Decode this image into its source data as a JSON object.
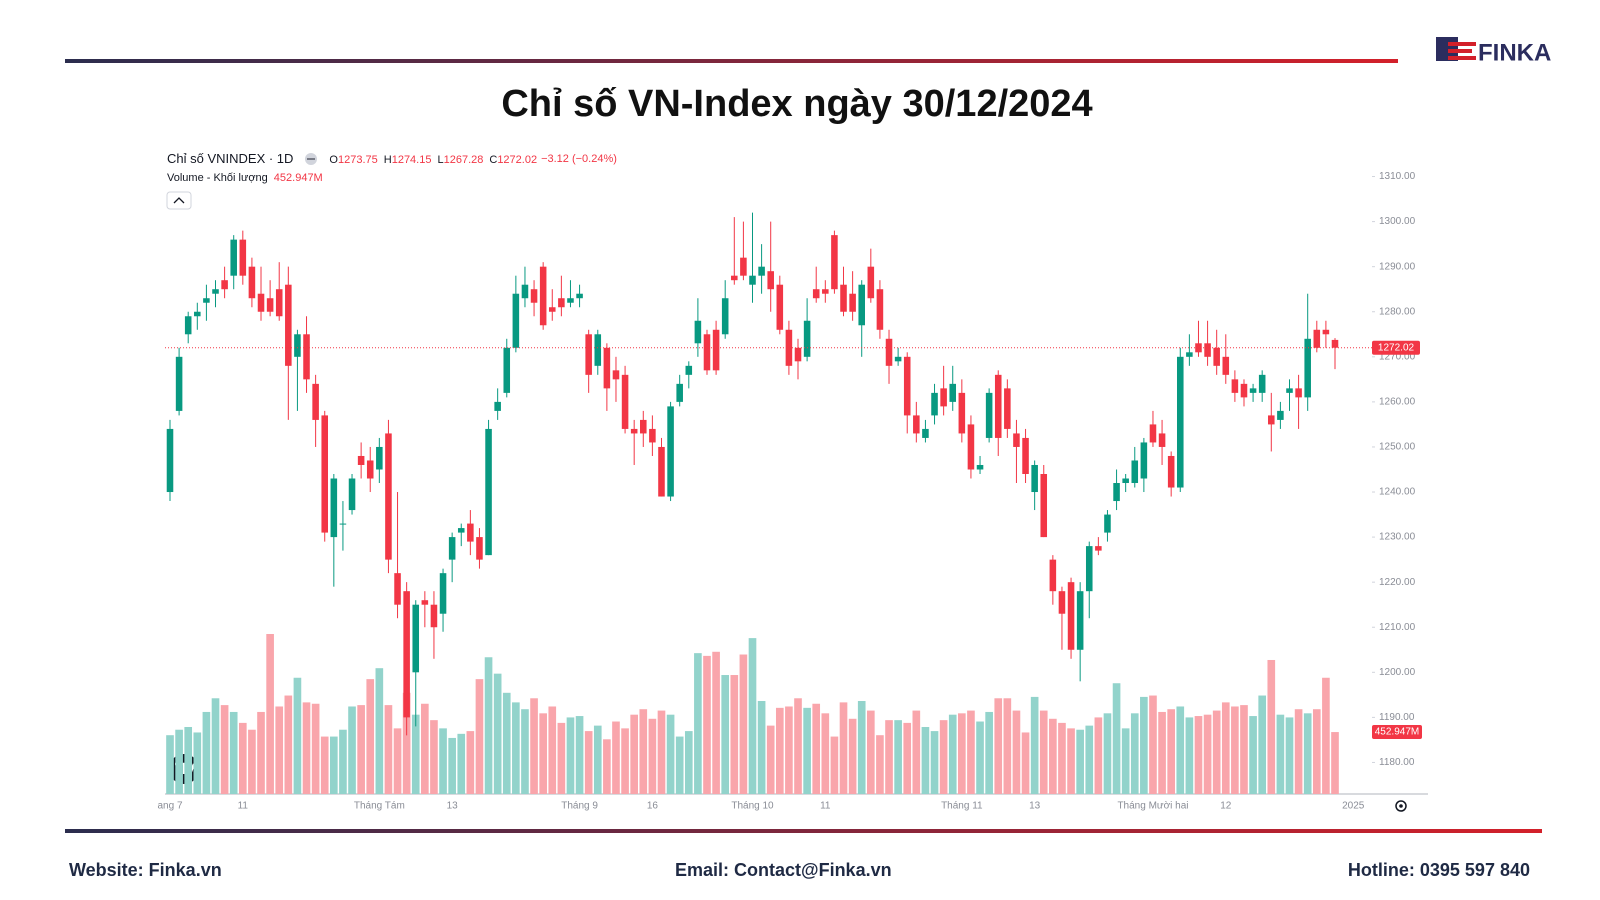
{
  "header": {
    "logo": "FINKA",
    "title": "Chỉ số VN-Index ngày 30/12/2024"
  },
  "footer": {
    "website": "Website: Finka.vn",
    "email": "Email: Contact@Finka.vn",
    "hotline": "Hotline: 0395 597 840"
  },
  "chart_data": {
    "type": "candlestick",
    "symbol": "Chỉ số VNINDEX · 1D",
    "ohlc_legend": [
      {
        "key": "O",
        "value": "1273.75"
      },
      {
        "key": "H",
        "value": "1274.15"
      },
      {
        "key": "L",
        "value": "1267.28"
      },
      {
        "key": "C",
        "value": "1272.02"
      }
    ],
    "change": "−3.12 (−0.24%)",
    "volume_title": "Volume - Khối lượng",
    "volume_last": "452.947M",
    "last_price": {
      "value": 1272.02,
      "label": "1272.02"
    },
    "up_color": "#089981",
    "down_color": "#f23645",
    "volume_up_color": "#92d3cb",
    "volume_down_color": "#f9a5ab",
    "ylim": [
      1173,
      1315
    ],
    "yticks": [
      {
        "value": 1180,
        "label": "1180.00"
      },
      {
        "value": 1190,
        "label": "1190.00"
      },
      {
        "value": 1200,
        "label": "1200.00"
      },
      {
        "value": 1210,
        "label": "1210.00"
      },
      {
        "value": 1220,
        "label": "1220.00"
      },
      {
        "value": 1230,
        "label": "1230.00"
      },
      {
        "value": 1240,
        "label": "1240.00"
      },
      {
        "value": 1250,
        "label": "1250.00"
      },
      {
        "value": 1260,
        "label": "1260.00"
      },
      {
        "value": 1270,
        "label": "1270.00"
      },
      {
        "value": 1280,
        "label": "1280.00"
      },
      {
        "value": 1290,
        "label": "1290.00"
      },
      {
        "value": 1300,
        "label": "1300.00"
      },
      {
        "value": 1310,
        "label": "1310.00"
      }
    ],
    "x_labels": [
      {
        "index": 0,
        "label": "ang 7"
      },
      {
        "index": 8,
        "label": "11"
      },
      {
        "index": 23,
        "label": "Tháng Tám"
      },
      {
        "index": 31,
        "label": "13"
      },
      {
        "index": 45,
        "label": "Tháng 9"
      },
      {
        "index": 53,
        "label": "16"
      },
      {
        "index": 64,
        "label": "Tháng 10"
      },
      {
        "index": 72,
        "label": "11"
      },
      {
        "index": 87,
        "label": "Tháng 11"
      },
      {
        "index": 95,
        "label": "13"
      },
      {
        "index": 108,
        "label": "Tháng Mười hai"
      },
      {
        "index": 116,
        "label": "12"
      },
      {
        "index": 130,
        "label": "2025"
      }
    ],
    "ohlc": [
      [
        1240,
        1256,
        1238,
        1254
      ],
      [
        1258,
        1272,
        1257,
        1270
      ],
      [
        1275,
        1280,
        1273,
        1279
      ],
      [
        1279,
        1282,
        1276,
        1280
      ],
      [
        1282,
        1286,
        1278,
        1283
      ],
      [
        1284,
        1287,
        1281,
        1285
      ],
      [
        1287,
        1290,
        1283,
        1285
      ],
      [
        1288,
        1297,
        1285,
        1296
      ],
      [
        1296,
        1298,
        1286,
        1288
      ],
      [
        1290,
        1292,
        1281,
        1283
      ],
      [
        1284,
        1290,
        1278,
        1280
      ],
      [
        1283,
        1287,
        1279,
        1280
      ],
      [
        1285,
        1291,
        1278,
        1279
      ],
      [
        1286,
        1290,
        1256,
        1268
      ],
      [
        1270,
        1276,
        1258,
        1275
      ],
      [
        1275,
        1279,
        1262,
        1265
      ],
      [
        1264,
        1266,
        1250,
        1256
      ],
      [
        1257,
        1258,
        1229,
        1231
      ],
      [
        1230,
        1244,
        1219,
        1243
      ],
      [
        1233,
        1238,
        1227,
        1233
      ],
      [
        1236,
        1244,
        1235,
        1243
      ],
      [
        1248,
        1251,
        1243,
        1246
      ],
      [
        1247,
        1250,
        1240,
        1243
      ],
      [
        1245,
        1252,
        1242,
        1250
      ],
      [
        1253,
        1256,
        1222,
        1225
      ],
      [
        1222,
        1240,
        1212,
        1215
      ],
      [
        1218,
        1220,
        1186,
        1190
      ],
      [
        1200,
        1216,
        1188,
        1215
      ],
      [
        1216,
        1218,
        1210,
        1215
      ],
      [
        1215,
        1218,
        1203,
        1210
      ],
      [
        1213,
        1223,
        1209,
        1222
      ],
      [
        1225,
        1231,
        1220,
        1230
      ],
      [
        1231,
        1233,
        1228,
        1232
      ],
      [
        1233,
        1236,
        1226,
        1229
      ],
      [
        1230,
        1232,
        1223,
        1225
      ],
      [
        1226,
        1256,
        1226,
        1254
      ],
      [
        1258,
        1263,
        1256,
        1260
      ],
      [
        1262,
        1274,
        1261,
        1272
      ],
      [
        1272,
        1288,
        1271,
        1284
      ],
      [
        1283,
        1290,
        1281,
        1286
      ],
      [
        1285,
        1287,
        1279,
        1282
      ],
      [
        1290,
        1291,
        1276,
        1277
      ],
      [
        1281,
        1285,
        1278,
        1280
      ],
      [
        1283,
        1288,
        1279,
        1281
      ],
      [
        1282,
        1287,
        1281,
        1283
      ],
      [
        1283,
        1286,
        1281,
        1284
      ],
      [
        1275,
        1276,
        1262,
        1266
      ],
      [
        1268,
        1276,
        1266,
        1275
      ],
      [
        1272,
        1273,
        1258,
        1263
      ],
      [
        1267,
        1270,
        1260,
        1265
      ],
      [
        1266,
        1268,
        1253,
        1254
      ],
      [
        1254,
        1256,
        1246,
        1253
      ],
      [
        1256,
        1258,
        1250,
        1253
      ],
      [
        1254,
        1257,
        1248,
        1251
      ],
      [
        1250,
        1252,
        1239,
        1239
      ],
      [
        1239,
        1260,
        1238,
        1259
      ],
      [
        1260,
        1266,
        1259,
        1264
      ],
      [
        1266,
        1269,
        1263,
        1268
      ],
      [
        1273,
        1283,
        1270,
        1278
      ],
      [
        1275,
        1276,
        1266,
        1267
      ],
      [
        1276,
        1278,
        1266,
        1267
      ],
      [
        1275,
        1287,
        1274,
        1283
      ],
      [
        1288,
        1301,
        1286,
        1287
      ],
      [
        1292,
        1300,
        1287,
        1288
      ],
      [
        1286,
        1302,
        1282,
        1288
      ],
      [
        1288,
        1295,
        1284,
        1290
      ],
      [
        1289,
        1300,
        1280,
        1285
      ],
      [
        1286,
        1288,
        1275,
        1276
      ],
      [
        1276,
        1278,
        1266,
        1268
      ],
      [
        1272,
        1274,
        1265,
        1269
      ],
      [
        1270,
        1283,
        1269,
        1278
      ],
      [
        1285,
        1290,
        1282,
        1283
      ],
      [
        1285,
        1287,
        1282,
        1284
      ],
      [
        1297,
        1298,
        1284,
        1285
      ],
      [
        1286,
        1290,
        1279,
        1280
      ],
      [
        1284,
        1289,
        1278,
        1280
      ],
      [
        1277,
        1287,
        1270,
        1286
      ],
      [
        1290,
        1294,
        1282,
        1283
      ],
      [
        1285,
        1287,
        1274,
        1276
      ],
      [
        1274,
        1276,
        1264,
        1268
      ],
      [
        1269,
        1272,
        1268,
        1270
      ],
      [
        1270,
        1271,
        1253,
        1257
      ],
      [
        1257,
        1260,
        1251,
        1253
      ],
      [
        1252,
        1256,
        1251,
        1254
      ],
      [
        1257,
        1264,
        1255,
        1262
      ],
      [
        1263,
        1268,
        1257,
        1259
      ],
      [
        1260,
        1268,
        1258,
        1264
      ],
      [
        1262,
        1265,
        1251,
        1253
      ],
      [
        1255,
        1257,
        1243,
        1245
      ],
      [
        1245,
        1248,
        1244,
        1246
      ],
      [
        1252,
        1263,
        1251,
        1262
      ],
      [
        1266,
        1267,
        1248,
        1252
      ],
      [
        1263,
        1265,
        1252,
        1254
      ],
      [
        1253,
        1256,
        1242,
        1250
      ],
      [
        1252,
        1254,
        1242,
        1244
      ],
      [
        1240,
        1247,
        1236,
        1246
      ],
      [
        1244,
        1246,
        1230,
        1230
      ],
      [
        1225,
        1226,
        1215,
        1218
      ],
      [
        1218,
        1219,
        1205,
        1213
      ],
      [
        1220,
        1221,
        1203,
        1205
      ],
      [
        1205,
        1220,
        1198,
        1218
      ],
      [
        1218,
        1229,
        1212,
        1228
      ],
      [
        1228,
        1230,
        1226,
        1227
      ],
      [
        1231,
        1236,
        1229,
        1235
      ],
      [
        1238,
        1245,
        1236,
        1242
      ],
      [
        1242,
        1244,
        1240,
        1243
      ],
      [
        1242,
        1250,
        1241,
        1247
      ],
      [
        1243,
        1252,
        1240,
        1251
      ],
      [
        1255,
        1258,
        1250,
        1251
      ],
      [
        1253,
        1256,
        1246,
        1250
      ],
      [
        1248,
        1249,
        1239,
        1241
      ],
      [
        1241,
        1272,
        1240,
        1270
      ],
      [
        1270,
        1275,
        1268,
        1271
      ],
      [
        1273,
        1278,
        1270,
        1271
      ],
      [
        1273,
        1278,
        1268,
        1270
      ],
      [
        1272,
        1276,
        1266,
        1268
      ],
      [
        1270,
        1275,
        1264,
        1266
      ],
      [
        1265,
        1267,
        1260,
        1262
      ],
      [
        1264,
        1265,
        1259,
        1261
      ],
      [
        1262,
        1264,
        1260,
        1263
      ],
      [
        1262,
        1267,
        1260,
        1266
      ],
      [
        1257,
        1262,
        1249,
        1255
      ],
      [
        1256,
        1260,
        1254,
        1258
      ],
      [
        1262,
        1265,
        1258,
        1263
      ],
      [
        1263,
        1266,
        1254,
        1261
      ],
      [
        1261,
        1284,
        1258,
        1274
      ],
      [
        1276,
        1278,
        1271,
        1272
      ],
      [
        1276,
        1278,
        1272,
        1275
      ],
      [
        1273.75,
        1274.15,
        1267.28,
        1272.02
      ]
    ],
    "volumes": [
      430,
      470,
      490,
      450,
      600,
      700,
      650,
      600,
      520,
      470,
      600,
      1170,
      640,
      720,
      850,
      670,
      660,
      420,
      420,
      470,
      640,
      650,
      840,
      920,
      650,
      480,
      740,
      580,
      660,
      540,
      480,
      410,
      440,
      460,
      840,
      1000,
      880,
      740,
      670,
      620,
      700,
      590,
      640,
      520,
      560,
      570,
      460,
      500,
      400,
      530,
      480,
      580,
      620,
      550,
      610,
      580,
      420,
      460,
      1030,
      1010,
      1040,
      870,
      870,
      1020,
      1140,
      680,
      500,
      630,
      640,
      700,
      630,
      660,
      590,
      420,
      670,
      550,
      680,
      610,
      430,
      540,
      540,
      520,
      610,
      490,
      460,
      540,
      580,
      590,
      610,
      530,
      600,
      700,
      700,
      610,
      450,
      710,
      610,
      550,
      520,
      480,
      470,
      500,
      560,
      590,
      810,
      480,
      590,
      710,
      720,
      600,
      620,
      640,
      560,
      570,
      580,
      610,
      670,
      640,
      650,
      570,
      720,
      980,
      580,
      560,
      620,
      590,
      620,
      850,
      452.947
    ]
  }
}
